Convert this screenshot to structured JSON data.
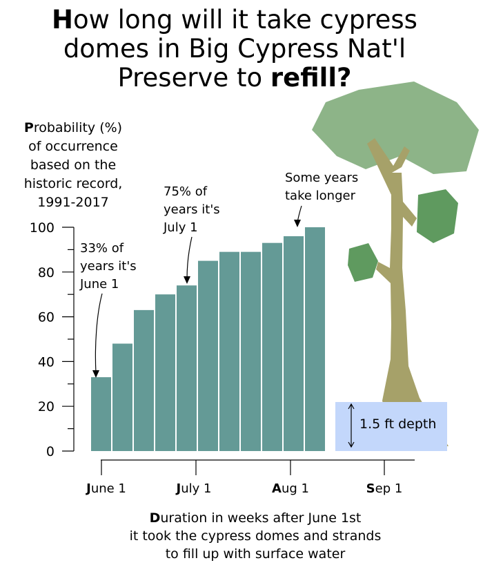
{
  "title": {
    "line1_lead": "H",
    "line1_rest": "ow long will it take cypress",
    "line2": "domes in Big Cypress Nat'l",
    "line3_pre": "Preserve to ",
    "line3_bold": "refill?"
  },
  "ylabel": {
    "lead": "P",
    "rest": "robability (%)",
    "lines": [
      "of occurrence",
      "based on the",
      "historic record,",
      "1991-2017"
    ]
  },
  "xlabel": {
    "lead": "D",
    "rest": "uration in weeks after June 1st",
    "lines": [
      "it took the cypress domes and strands",
      "to fill up with surface water"
    ]
  },
  "depth_label": "1.5 ft depth",
  "annotations": [
    {
      "lines": [
        "33% of",
        "years it's",
        "June 1"
      ]
    },
    {
      "lines": [
        "75% of",
        "years it's",
        "July 1"
      ]
    },
    {
      "lines": [
        "Some years",
        "take longer"
      ]
    }
  ],
  "x_ticks": [
    {
      "lead": "J",
      "rest": "une 1"
    },
    {
      "lead": "J",
      "rest": "uly 1"
    },
    {
      "lead": "A",
      "rest": "ug 1"
    },
    {
      "lead": "S",
      "rest": "ep 1"
    }
  ],
  "colors": {
    "bar": "#649a96",
    "depth_box": "#c3d7fb",
    "canopy": "#8db488",
    "leaf_dark": "#5f9a5f",
    "trunk": "#a6a169"
  },
  "chart_data": {
    "type": "bar",
    "categories": [
      1,
      2,
      3,
      4,
      5,
      6,
      7,
      8,
      9,
      10,
      11
    ],
    "values": [
      33,
      48,
      63,
      70,
      74,
      85,
      89,
      89,
      93,
      96,
      100
    ],
    "ylim": [
      0,
      100
    ],
    "yticks": [
      0,
      20,
      40,
      60,
      80,
      100
    ],
    "ylabel": "Probability (%) of occurrence based on the historic record, 1991-2017",
    "xlabel": "Duration in weeks after June 1st it took the cypress domes and strands to fill up with surface water",
    "grid": false
  }
}
